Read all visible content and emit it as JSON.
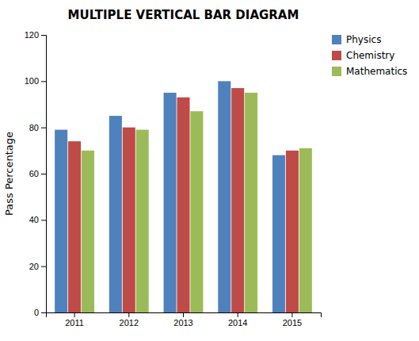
{
  "chart_data": {
    "type": "bar",
    "title": "MULTIPLE VERTICAL BAR DIAGRAM",
    "ylabel": "Pass Percentage",
    "categories": [
      "2011",
      "2012",
      "2013",
      "2014",
      "2015"
    ],
    "series": [
      {
        "name": "Physics",
        "color": "#4F81BD",
        "values": [
          79,
          85,
          95,
          100,
          68
        ]
      },
      {
        "name": "Chemistry",
        "color": "#BE4B48",
        "values": [
          74,
          80,
          93,
          97,
          70
        ]
      },
      {
        "name": "Mathematics",
        "color": "#9BBB59",
        "values": [
          70,
          79,
          87,
          95,
          71
        ]
      }
    ],
    "ylim": [
      0,
      120
    ],
    "yticks": [
      0,
      20,
      40,
      60,
      80,
      100,
      120
    ],
    "legend": "upper right",
    "grid": false
  }
}
